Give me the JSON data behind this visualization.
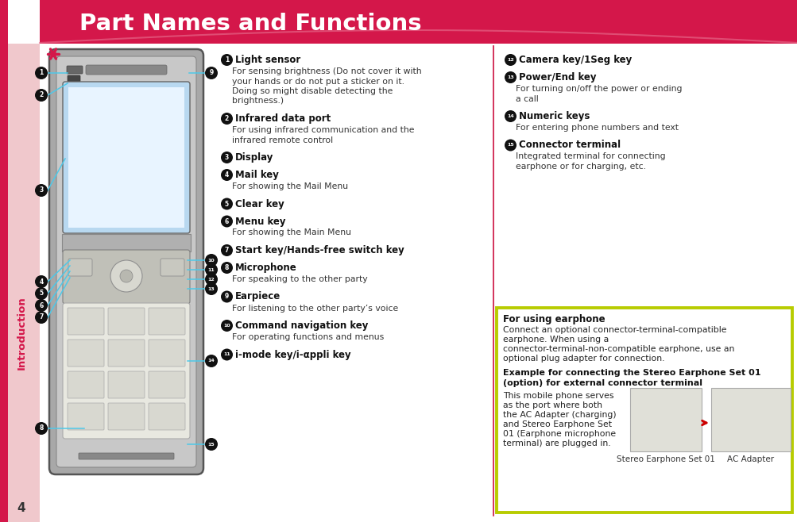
{
  "title": "Part Names and Functions",
  "header_bg": "#d4174a",
  "sidebar_bg": "#f0c8cc",
  "sidebar_text": "Introduction",
  "sidebar_text_color": "#d4174a",
  "page_number": "4",
  "cyan": "#4ec8e8",
  "left_col_items": [
    {
      "num": "1",
      "bold": "Light sensor",
      "desc": "For sensing brightness (Do not cover it with your hands or do not put a sticker on it. Doing so might disable detecting the brightness.)"
    },
    {
      "num": "2",
      "bold": "Infrared data port",
      "desc": "For using infrared communication and the infrared remote control"
    },
    {
      "num": "3",
      "bold": "Display",
      "desc": ""
    },
    {
      "num": "4",
      "bold": "Mail key",
      "desc": "For showing the Mail Menu"
    },
    {
      "num": "5",
      "bold": "Clear key",
      "desc": ""
    },
    {
      "num": "6",
      "bold": "Menu key",
      "desc": "For showing the Main Menu"
    },
    {
      "num": "7",
      "bold": "Start key/Hands-free switch key",
      "desc": ""
    },
    {
      "num": "8",
      "bold": "Microphone",
      "desc": "For speaking to the other party"
    },
    {
      "num": "9",
      "bold": "Earpiece",
      "desc": "For listening to the other party’s voice"
    },
    {
      "num": "10",
      "bold": "Command navigation key",
      "desc": "For operating functions and menus"
    },
    {
      "num": "11",
      "bold": "i-mode key/i-αppli key",
      "desc": ""
    }
  ],
  "right_col_items": [
    {
      "num": "12",
      "bold": "Camera key/1Seg key",
      "desc": ""
    },
    {
      "num": "13",
      "bold": "Power/End key",
      "desc": "For turning on/off the power or ending a call"
    },
    {
      "num": "14",
      "bold": "Numeric keys",
      "desc": "For entering phone numbers and text"
    },
    {
      "num": "15",
      "bold": "Connector terminal",
      "desc": "Integrated terminal for connecting earphone or for charging, etc."
    }
  ],
  "earphone_title": "For using earphone",
  "earphone_text": "Connect an optional connector-terminal-compatible earphone. When using a connector-terminal-non-compatible earphone, use an optional plug adapter for connection.",
  "example_title": "Example for connecting the Stereo Earphone Set 01 (option) for external connector terminal",
  "example_text": "This mobile phone serves\nas the port where both\nthe AC Adapter (charging)\nand Stereo Earphone Set\n01 (Earphone microphone\nterminal) are plugged in.",
  "label1": "Stereo Earphone Set 01",
  "label2": "AC Adapter",
  "box_border": "#b8cc00",
  "box_header_bg": "#c8dc00"
}
